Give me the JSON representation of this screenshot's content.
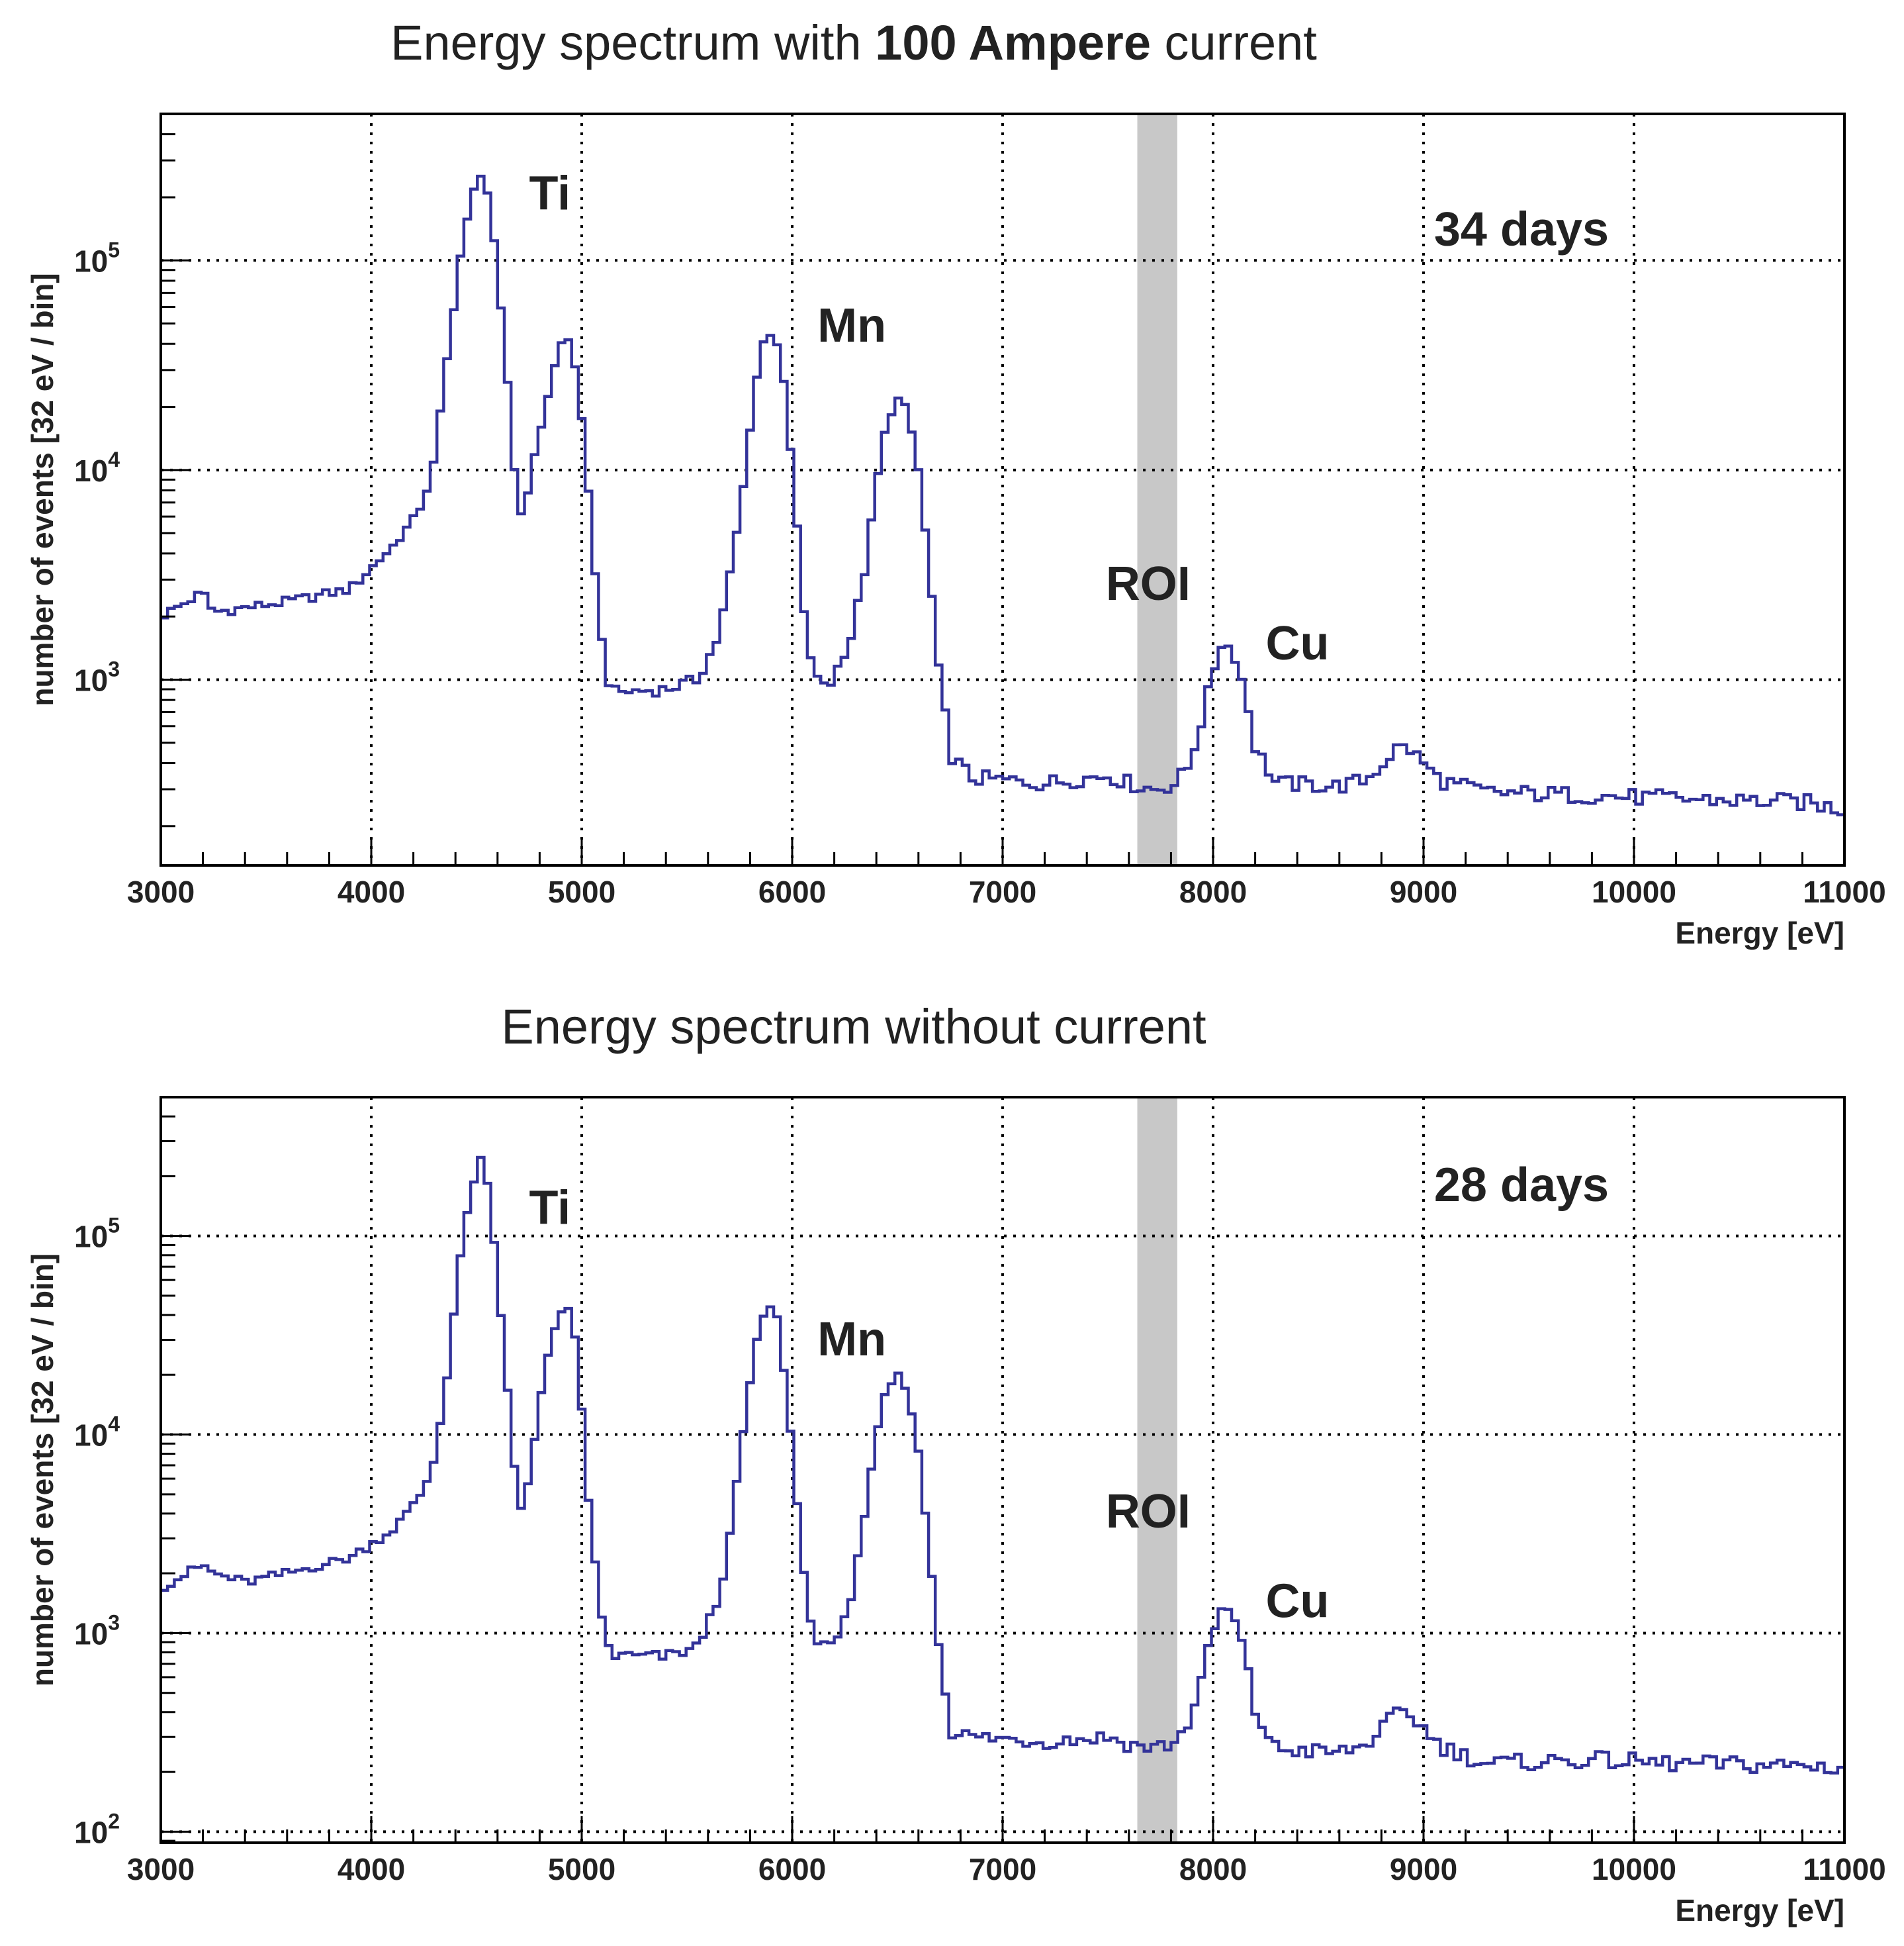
{
  "colors": {
    "histogram": "#333399",
    "roi_band": "#c8c8c8",
    "text": "#222222",
    "grid": "#000000"
  },
  "chart_data": [
    {
      "type": "histogram",
      "title_parts": [
        "Energy spectrum with ",
        "100 Ampere",
        " current"
      ],
      "xlabel": "Energy [eV]",
      "ylabel": "number of events  [32 eV / bin]",
      "xlim": [
        3000,
        11000
      ],
      "ylim": [
        130,
        500000
      ],
      "yscale": "log",
      "bin_width_eV": 32,
      "x_ticks": [
        "3000",
        "4000",
        "5000",
        "6000",
        "7000",
        "8000",
        "9000",
        "10000",
        "11000"
      ],
      "y_ticks": [
        {
          "base": "10",
          "exp": "3",
          "value": 1000
        },
        {
          "base": "10",
          "exp": "4",
          "value": 10000
        },
        {
          "base": "10",
          "exp": "5",
          "value": 100000
        }
      ],
      "roi": [
        7640,
        7830
      ],
      "roi_label": "ROI",
      "days_label": "34 days",
      "peak_labels": [
        {
          "text": "Ti",
          "x": 4750,
          "y": 175000
        },
        {
          "text": "Mn",
          "x": 6120,
          "y": 41000
        },
        {
          "text": "Cu",
          "x": 8250,
          "y": 1250
        }
      ],
      "roi_label_pos": {
        "x": 7490,
        "y": 2400
      },
      "days_pos": {
        "x": 9050,
        "y": 118000
      },
      "anchors": [
        [
          3000,
          2000
        ],
        [
          3200,
          2600
        ],
        [
          3250,
          2100
        ],
        [
          3600,
          2350
        ],
        [
          3900,
          2700
        ],
        [
          4100,
          4300
        ],
        [
          4200,
          5800
        ],
        [
          4250,
          7200
        ],
        [
          4300,
          11000
        ],
        [
          4350,
          28000
        ],
        [
          4420,
          100000
        ],
        [
          4480,
          205000
        ],
        [
          4520,
          260000
        ],
        [
          4560,
          200000
        ],
        [
          4600,
          85000
        ],
        [
          4650,
          25000
        ],
        [
          4700,
          5600
        ],
        [
          4750,
          8500
        ],
        [
          4800,
          15000
        ],
        [
          4860,
          28000
        ],
        [
          4900,
          40000
        ],
        [
          4940,
          42000
        ],
        [
          4980,
          28000
        ],
        [
          5030,
          8000
        ],
        [
          5080,
          2200
        ],
        [
          5110,
          1100
        ],
        [
          5150,
          870
        ],
        [
          5400,
          900
        ],
        [
          5550,
          1000
        ],
        [
          5650,
          1600
        ],
        [
          5700,
          3000
        ],
        [
          5760,
          7000
        ],
        [
          5800,
          16000
        ],
        [
          5850,
          38000
        ],
        [
          5890,
          46000
        ],
        [
          5930,
          40000
        ],
        [
          5970,
          22000
        ],
        [
          6020,
          6000
        ],
        [
          6060,
          1800
        ],
        [
          6110,
          1000
        ],
        [
          6180,
          950
        ],
        [
          6280,
          1600
        ],
        [
          6350,
          3500
        ],
        [
          6400,
          8500
        ],
        [
          6450,
          17000
        ],
        [
          6500,
          22000
        ],
        [
          6550,
          19000
        ],
        [
          6600,
          10000
        ],
        [
          6650,
          3500
        ],
        [
          6700,
          1000
        ],
        [
          6760,
          430
        ],
        [
          6850,
          340
        ],
        [
          7200,
          320
        ],
        [
          7500,
          350
        ],
        [
          7600,
          320
        ],
        [
          7720,
          300
        ],
        [
          7820,
          320
        ],
        [
          7880,
          380
        ],
        [
          7940,
          600
        ],
        [
          7990,
          1000
        ],
        [
          8040,
          1480
        ],
        [
          8090,
          1420
        ],
        [
          8150,
          900
        ],
        [
          8200,
          480
        ],
        [
          8300,
          320
        ],
        [
          8600,
          310
        ],
        [
          8720,
          330
        ],
        [
          8800,
          390
        ],
        [
          8870,
          470
        ],
        [
          8920,
          480
        ],
        [
          8980,
          420
        ],
        [
          9080,
          330
        ],
        [
          9300,
          290
        ],
        [
          9800,
          280
        ],
        [
          10200,
          270
        ],
        [
          10800,
          260
        ],
        [
          11000,
          240
        ]
      ]
    },
    {
      "type": "histogram",
      "title_parts": [
        "Energy spectrum without current"
      ],
      "xlabel": "Energy [eV]",
      "ylabel": "number of events  [32 eV / bin]",
      "xlim": [
        3000,
        11000
      ],
      "ylim": [
        88,
        500000
      ],
      "yscale": "log",
      "bin_width_eV": 32,
      "x_ticks": [
        "3000",
        "4000",
        "5000",
        "6000",
        "7000",
        "8000",
        "9000",
        "10000",
        "11000"
      ],
      "y_ticks": [
        {
          "base": "10",
          "exp": "2",
          "value": 100
        },
        {
          "base": "10",
          "exp": "3",
          "value": 1000
        },
        {
          "base": "10",
          "exp": "4",
          "value": 10000
        },
        {
          "base": "10",
          "exp": "5",
          "value": 100000
        }
      ],
      "roi": [
        7640,
        7830
      ],
      "roi_label": "ROI",
      "days_label": "28 days",
      "peak_labels": [
        {
          "text": "Ti",
          "x": 4750,
          "y": 115000
        },
        {
          "text": "Mn",
          "x": 6120,
          "y": 25000
        },
        {
          "text": "Cu",
          "x": 8250,
          "y": 1200
        }
      ],
      "roi_label_pos": {
        "x": 7490,
        "y": 3400
      },
      "days_pos": {
        "x": 9050,
        "y": 150000
      },
      "anchors": [
        [
          3000,
          1700
        ],
        [
          3200,
          2200
        ],
        [
          3250,
          2000
        ],
        [
          3400,
          1800
        ],
        [
          3600,
          2000
        ],
        [
          3900,
          2400
        ],
        [
          4100,
          3300
        ],
        [
          4200,
          4400
        ],
        [
          4250,
          5300
        ],
        [
          4300,
          7500
        ],
        [
          4350,
          16000
        ],
        [
          4420,
          75000
        ],
        [
          4480,
          180000
        ],
        [
          4520,
          240000
        ],
        [
          4560,
          170000
        ],
        [
          4600,
          60000
        ],
        [
          4650,
          16000
        ],
        [
          4700,
          4000
        ],
        [
          4750,
          6000
        ],
        [
          4800,
          14000
        ],
        [
          4860,
          33000
        ],
        [
          4900,
          40000
        ],
        [
          4940,
          42000
        ],
        [
          4980,
          26000
        ],
        [
          5030,
          5000
        ],
        [
          5080,
          1500
        ],
        [
          5110,
          950
        ],
        [
          5150,
          770
        ],
        [
          5400,
          760
        ],
        [
          5550,
          850
        ],
        [
          5650,
          1500
        ],
        [
          5700,
          2800
        ],
        [
          5760,
          9000
        ],
        [
          5800,
          18000
        ],
        [
          5850,
          38000
        ],
        [
          5890,
          44000
        ],
        [
          5930,
          38000
        ],
        [
          5970,
          18000
        ],
        [
          6020,
          5000
        ],
        [
          6060,
          1800
        ],
        [
          6110,
          900
        ],
        [
          6180,
          820
        ],
        [
          6280,
          1500
        ],
        [
          6350,
          4000
        ],
        [
          6400,
          10000
        ],
        [
          6450,
          17000
        ],
        [
          6500,
          20000
        ],
        [
          6550,
          17000
        ],
        [
          6600,
          8000
        ],
        [
          6650,
          2800
        ],
        [
          6700,
          800
        ],
        [
          6760,
          320
        ],
        [
          6850,
          300
        ],
        [
          7200,
          285
        ],
        [
          7500,
          300
        ],
        [
          7600,
          275
        ],
        [
          7720,
          265
        ],
        [
          7820,
          280
        ],
        [
          7880,
          350
        ],
        [
          7940,
          550
        ],
        [
          7990,
          950
        ],
        [
          8040,
          1300
        ],
        [
          8090,
          1280
        ],
        [
          8150,
          800
        ],
        [
          8200,
          400
        ],
        [
          8300,
          260
        ],
        [
          8600,
          250
        ],
        [
          8720,
          270
        ],
        [
          8800,
          330
        ],
        [
          8870,
          390
        ],
        [
          8920,
          400
        ],
        [
          8980,
          350
        ],
        [
          9080,
          270
        ],
        [
          9300,
          220
        ],
        [
          9800,
          230
        ],
        [
          10200,
          220
        ],
        [
          10800,
          215
        ],
        [
          11000,
          210
        ]
      ]
    }
  ]
}
